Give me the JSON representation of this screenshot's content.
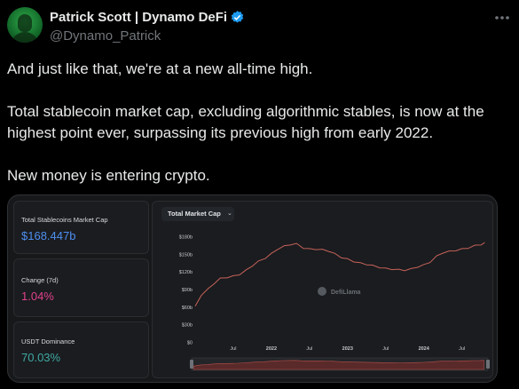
{
  "author": {
    "name": "Patrick Scott | Dynamo DeFi",
    "handle": "@Dynamo_Patrick"
  },
  "tweet": {
    "line1": "And just like that, we're at a new all-time high.",
    "para2_line1": "Total stablecoin market cap, excluding algorithmic stables, is now at the",
    "para2_line2": "highest point ever, surpassing its previous high from early 2022.",
    "line3": "New money is entering crypto."
  },
  "stats": [
    {
      "label": "Total Stablecoins Market Cap",
      "value": "$168.447b",
      "color": "#4e8ff0"
    },
    {
      "label": "Change (7d)",
      "value": "1.04%",
      "color": "#e0418c"
    },
    {
      "label": "USDT Dominance",
      "value": "70.03%",
      "color": "#3fa9a4"
    }
  ],
  "chart": {
    "dropdown_label": "Total Market Cap",
    "watermark": "DefiLlama",
    "line_color": "#c8625a"
  },
  "chart_data": {
    "type": "line",
    "title": "Total Market Cap",
    "y_ticks": [
      "$0",
      "$30b",
      "$60b",
      "$90b",
      "$120b",
      "$150b",
      "$180b"
    ],
    "x_ticks": [
      "Jul",
      "2022",
      "Jul",
      "2023",
      "Jul",
      "2024",
      "Jul"
    ],
    "ylim": [
      0,
      180
    ],
    "unit": "billion USD",
    "series": [
      {
        "values": [
          [
            2021.0,
            60
          ],
          [
            2021.08,
            80
          ],
          [
            2021.17,
            90
          ],
          [
            2021.25,
            100
          ],
          [
            2021.33,
            108
          ],
          [
            2021.42,
            110
          ],
          [
            2021.5,
            112
          ],
          [
            2021.58,
            115
          ],
          [
            2021.67,
            122
          ],
          [
            2021.75,
            130
          ],
          [
            2021.83,
            137
          ],
          [
            2021.92,
            143
          ],
          [
            2022.0,
            150
          ],
          [
            2022.08,
            158
          ],
          [
            2022.17,
            163
          ],
          [
            2022.25,
            166
          ],
          [
            2022.33,
            167
          ],
          [
            2022.42,
            160
          ],
          [
            2022.5,
            158
          ],
          [
            2022.58,
            158
          ],
          [
            2022.67,
            157
          ],
          [
            2022.75,
            155
          ],
          [
            2022.83,
            150
          ],
          [
            2022.92,
            144
          ],
          [
            2023.0,
            141
          ],
          [
            2023.08,
            137
          ],
          [
            2023.17,
            134
          ],
          [
            2023.25,
            132
          ],
          [
            2023.33,
            130
          ],
          [
            2023.42,
            127
          ],
          [
            2023.5,
            125
          ],
          [
            2023.58,
            124
          ],
          [
            2023.67,
            123
          ],
          [
            2023.75,
            122
          ],
          [
            2023.83,
            124
          ],
          [
            2023.92,
            128
          ],
          [
            2024.0,
            131
          ],
          [
            2024.08,
            136
          ],
          [
            2024.17,
            146
          ],
          [
            2024.25,
            152
          ],
          [
            2024.33,
            154
          ],
          [
            2024.42,
            156
          ],
          [
            2024.5,
            158
          ],
          [
            2024.58,
            160
          ],
          [
            2024.67,
            164
          ],
          [
            2024.75,
            166
          ],
          [
            2024.8,
            168.4
          ]
        ]
      }
    ]
  }
}
